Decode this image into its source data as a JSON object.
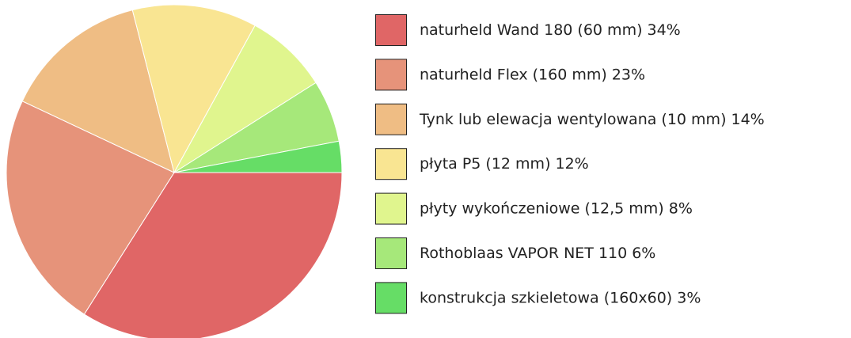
{
  "chart_data": {
    "type": "pie",
    "categories": [
      "naturheld Wand 180 (60 mm)",
      "naturheld Flex (160 mm)",
      "Tynk lub elewacja wentylowana (10 mm)",
      "płyta P5 (12 mm)",
      "płyty wykończeniowe (12,5 mm)",
      "Rothoblaas VAPOR NET 110",
      "konstrukcja szkieletowa (160x60)"
    ],
    "values": [
      34,
      23,
      14,
      12,
      8,
      6,
      3
    ],
    "value_labels": [
      "34%",
      "23%",
      "14%",
      "12%",
      "8%",
      "6%",
      "3%"
    ],
    "colors": [
      "#e06666",
      "#e6937a",
      "#efbd84",
      "#f9e592",
      "#e0f58e",
      "#a6e87a",
      "#66dd66"
    ],
    "legend": "right"
  }
}
